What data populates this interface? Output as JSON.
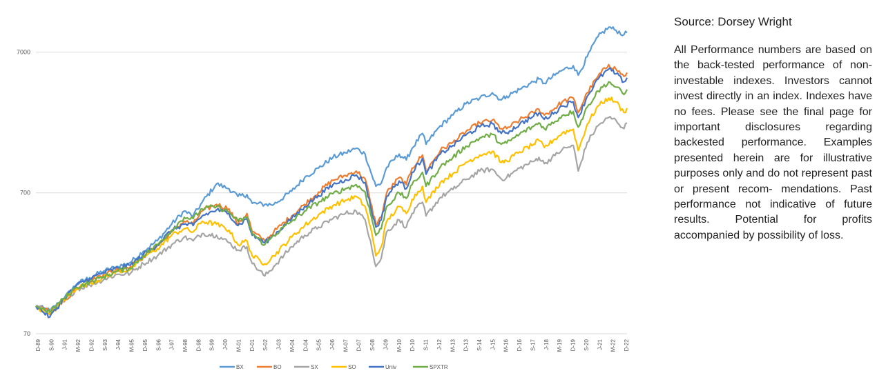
{
  "side_panel": {
    "source": "Source: Dorsey Wright",
    "disclaimer": "All Performance numbers are based on the back-tested performance of non-investable indexes. Investors cannot invest directly in an index. Indexes have no fees. Please see the final page for important disclosures regarding backested performance. Examples presented herein are for illustrative purposes only and do not represent past or present recom- mendations. Past performance not indicative of future results. Potential for profits accompanied by possibility of loss."
  },
  "chart_data": {
    "type": "line",
    "scale": "log",
    "ylim": [
      70,
      14000
    ],
    "yticks": [
      70,
      700,
      7000
    ],
    "xlim": [
      1989.92,
      2022.92
    ],
    "grid": "horizontal",
    "legend_position": "bottom",
    "xtick_labels": [
      "D-89",
      "S-90",
      "J-91",
      "M-92",
      "D-92",
      "S-93",
      "J-94",
      "M-95",
      "D-95",
      "S-96",
      "J-97",
      "M-98",
      "D-98",
      "S-99",
      "J-00",
      "M-01",
      "D-01",
      "S-02",
      "J-03",
      "M-04",
      "D-04",
      "S-05",
      "J-06",
      "M-07",
      "D-07",
      "S-08",
      "J-09",
      "M-10",
      "D-10",
      "S-11",
      "J-12",
      "M-13",
      "D-13",
      "S-14",
      "J-15",
      "M-16",
      "D-16",
      "S-17",
      "J-18",
      "M-19",
      "D-19",
      "S-20",
      "J-21",
      "M-22",
      "D-22"
    ],
    "x": [
      1989.92,
      1990.7,
      1991.5,
      1992.2,
      1992.92,
      1993.7,
      1994.5,
      1995.2,
      1995.92,
      1996.7,
      1997.5,
      1998.2,
      1998.7,
      1999.2,
      2000.0,
      2000.7,
      2001.2,
      2001.7,
      2002.0,
      2002.7,
      2003.2,
      2004.2,
      2004.92,
      2005.7,
      2006.5,
      2007.2,
      2007.8,
      2008.3,
      2008.6,
      2008.9,
      2009.2,
      2009.5,
      2010.2,
      2010.6,
      2010.92,
      2011.5,
      2011.7,
      2012.5,
      2013.2,
      2013.92,
      2014.7,
      2015.4,
      2015.9,
      2016.2,
      2016.92,
      2017.7,
      2018.0,
      2018.3,
      2018.9,
      2019.3,
      2019.92,
      2020.2,
      2020.7,
      2021.3,
      2021.9,
      2022.3,
      2022.75,
      2022.92
    ],
    "series": [
      {
        "name": "BX",
        "color": "#5B9BD5",
        "values": [
          110,
          102,
          125,
          158,
          175,
          195,
          210,
          225,
          270,
          320,
          420,
          520,
          480,
          600,
          810,
          750,
          660,
          680,
          590,
          580,
          580,
          720,
          900,
          1050,
          1250,
          1350,
          1450,
          1320,
          1000,
          780,
          820,
          1060,
          1320,
          1200,
          1450,
          1850,
          1550,
          2100,
          2500,
          3000,
          3300,
          3600,
          3200,
          3400,
          3800,
          4300,
          4500,
          4200,
          4800,
          5200,
          5600,
          4800,
          6500,
          9000,
          10500,
          10000,
          9300,
          9600
        ]
      },
      {
        "name": "BO",
        "color": "#ED7D31",
        "values": [
          110,
          100,
          118,
          150,
          165,
          185,
          200,
          210,
          245,
          295,
          370,
          440,
          420,
          520,
          580,
          540,
          420,
          500,
          370,
          320,
          370,
          480,
          580,
          710,
          860,
          930,
          1000,
          880,
          600,
          420,
          470,
          700,
          900,
          800,
          1050,
          1300,
          1000,
          1400,
          1600,
          1900,
          2200,
          2300,
          2000,
          2000,
          2300,
          2600,
          2750,
          2500,
          2800,
          3100,
          3300,
          2600,
          3600,
          4700,
          5700,
          5300,
          4700,
          5000
        ]
      },
      {
        "name": "SX",
        "color": "#A5A5A5",
        "values": [
          110,
          100,
          120,
          145,
          155,
          170,
          185,
          188,
          220,
          250,
          300,
          340,
          320,
          360,
          350,
          310,
          275,
          290,
          220,
          180,
          210,
          290,
          350,
          400,
          460,
          500,
          520,
          450,
          320,
          210,
          240,
          370,
          450,
          400,
          500,
          600,
          480,
          650,
          740,
          870,
          1000,
          1030,
          880,
          900,
          1050,
          1170,
          1250,
          1130,
          1290,
          1420,
          1520,
          1000,
          1600,
          2100,
          2400,
          2300,
          2000,
          2200
        ]
      },
      {
        "name": "SO",
        "color": "#FFC000",
        "values": [
          110,
          95,
          122,
          148,
          160,
          175,
          195,
          200,
          245,
          280,
          350,
          390,
          370,
          440,
          420,
          380,
          300,
          320,
          250,
          220,
          250,
          340,
          410,
          490,
          570,
          620,
          660,
          560,
          400,
          250,
          290,
          440,
          560,
          500,
          630,
          780,
          600,
          830,
          960,
          1150,
          1300,
          1380,
          1150,
          1180,
          1370,
          1550,
          1650,
          1470,
          1690,
          1860,
          1980,
          1400,
          2150,
          2900,
          3300,
          3100,
          2600,
          2800
        ]
      },
      {
        "name": "Univ",
        "color": "#4472C4",
        "values": [
          110,
          92,
          125,
          155,
          172,
          190,
          205,
          215,
          255,
          300,
          380,
          420,
          410,
          480,
          530,
          500,
          410,
          460,
          350,
          310,
          350,
          460,
          560,
          670,
          800,
          870,
          940,
          830,
          560,
          400,
          450,
          660,
          850,
          750,
          980,
          1230,
          950,
          1320,
          1520,
          1800,
          2060,
          2170,
          1850,
          1870,
          2150,
          2450,
          2580,
          2330,
          2620,
          2900,
          3100,
          2400,
          3400,
          4500,
          5300,
          4900,
          4300,
          4600
        ]
      },
      {
        "name": "SPXTR",
        "color": "#70AD47",
        "values": [
          110,
          100,
          125,
          150,
          162,
          178,
          195,
          205,
          250,
          300,
          380,
          470,
          460,
          540,
          560,
          510,
          440,
          470,
          360,
          300,
          350,
          440,
          520,
          600,
          690,
          750,
          800,
          710,
          500,
          350,
          390,
          560,
          700,
          640,
          800,
          980,
          780,
          1070,
          1250,
          1500,
          1720,
          1820,
          1550,
          1580,
          1830,
          2080,
          2200,
          2000,
          2250,
          2480,
          2650,
          2050,
          2850,
          3700,
          4300,
          3950,
          3500,
          3800
        ]
      }
    ]
  }
}
